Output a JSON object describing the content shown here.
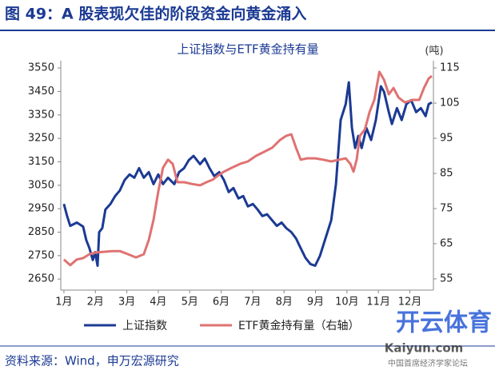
{
  "header": {
    "title": "图 49：A 股表现欠佳的阶段资金向黄金涌入"
  },
  "chart_data": {
    "type": "line",
    "title": "上证指数与ETF黄金持有量",
    "y2_unit": "(吨)",
    "xlim": [
      0.9,
      12.75
    ],
    "xticks": [
      {
        "value": 1,
        "label": "1月"
      },
      {
        "value": 2,
        "label": "2月"
      },
      {
        "value": 3,
        "label": "3月"
      },
      {
        "value": 4,
        "label": "4月"
      },
      {
        "value": 5,
        "label": "5月"
      },
      {
        "value": 6,
        "label": "6月"
      },
      {
        "value": 7,
        "label": "7月"
      },
      {
        "value": 8,
        "label": "8月"
      },
      {
        "value": 9,
        "label": "9月"
      },
      {
        "value": 10,
        "label": "10月"
      },
      {
        "value": 11,
        "label": "11月"
      },
      {
        "value": 12,
        "label": "12月"
      }
    ],
    "ylim": [
      2603,
      3581
    ],
    "yticks": [
      2650,
      2750,
      2850,
      2950,
      3050,
      3150,
      3250,
      3350,
      3450,
      3550
    ],
    "y2lim": [
      51.8,
      117.05
    ],
    "y2ticks": [
      55,
      65,
      75,
      85,
      95,
      105,
      115
    ],
    "legend": "bottom",
    "series": [
      {
        "name": "上证指数",
        "color": "#1b3a93",
        "axis": "y",
        "x": [
          1.0,
          1.1,
          1.2,
          1.41,
          1.61,
          1.71,
          1.81,
          1.92,
          1.99,
          2.07,
          2.12,
          2.22,
          2.32,
          2.48,
          2.63,
          2.78,
          2.93,
          3.09,
          3.24,
          3.39,
          3.54,
          3.7,
          3.85,
          4.0,
          4.15,
          4.31,
          4.51,
          4.66,
          4.82,
          4.97,
          5.12,
          5.33,
          5.48,
          5.63,
          5.78,
          5.94,
          6.09,
          6.24,
          6.39,
          6.55,
          6.7,
          6.85,
          7.01,
          7.16,
          7.31,
          7.46,
          7.62,
          7.77,
          7.92,
          8.07,
          8.23,
          8.38,
          8.53,
          8.68,
          8.84,
          8.99,
          9.14,
          9.3,
          9.5,
          9.65,
          9.8,
          9.96,
          10.06,
          10.16,
          10.26,
          10.36,
          10.47,
          10.62,
          10.77,
          10.92,
          11.08,
          11.18,
          11.33,
          11.43,
          11.59,
          11.74,
          11.89,
          12.04,
          12.2,
          12.35,
          12.5,
          12.6,
          12.7
        ],
        "values": [
          2970,
          2919,
          2877,
          2891,
          2874,
          2816,
          2782,
          2731,
          2765,
          2707,
          2850,
          2867,
          2946,
          2970,
          3004,
          3028,
          3072,
          3096,
          3082,
          3123,
          3082,
          3106,
          3055,
          3096,
          3055,
          3082,
          3055,
          3106,
          3123,
          3157,
          3175,
          3140,
          3164,
          3123,
          3089,
          3106,
          3072,
          3021,
          3038,
          2994,
          3004,
          2960,
          2970,
          2946,
          2919,
          2926,
          2901,
          2877,
          2891,
          2867,
          2850,
          2823,
          2782,
          2741,
          2714,
          2707,
          2748,
          2816,
          2901,
          3055,
          3328,
          3396,
          3489,
          3294,
          3209,
          3260,
          3209,
          3294,
          3243,
          3328,
          3472,
          3448,
          3362,
          3311,
          3379,
          3328,
          3396,
          3413,
          3362,
          3379,
          3345,
          3396,
          3403
        ]
      },
      {
        "name": "ETF黄金持有量（右轴）",
        "color": "#e07272",
        "axis": "y2",
        "x": [
          1.0,
          1.2,
          1.41,
          1.61,
          1.81,
          2.02,
          2.27,
          2.53,
          2.78,
          3.04,
          3.29,
          3.54,
          3.7,
          3.85,
          4.0,
          4.15,
          4.31,
          4.46,
          4.61,
          4.82,
          5.07,
          5.33,
          5.53,
          5.73,
          5.89,
          6.09,
          6.34,
          6.6,
          6.85,
          7.11,
          7.36,
          7.62,
          7.87,
          8.07,
          8.23,
          8.38,
          8.53,
          8.74,
          8.99,
          9.24,
          9.5,
          9.75,
          9.96,
          10.11,
          10.21,
          10.31,
          10.41,
          10.57,
          10.72,
          10.87,
          11.03,
          11.18,
          11.33,
          11.48,
          11.64,
          11.84,
          12.09,
          12.3,
          12.45,
          12.6,
          12.7
        ],
        "values": [
          60.5,
          58.9,
          60.5,
          60.9,
          62.0,
          62.5,
          62.7,
          62.9,
          62.9,
          62.0,
          61.1,
          62.0,
          66.1,
          71.8,
          79.8,
          86.6,
          88.9,
          87.7,
          82.5,
          82.5,
          82.0,
          81.6,
          82.5,
          83.2,
          84.3,
          85.5,
          86.6,
          87.7,
          88.4,
          90.0,
          91.1,
          92.3,
          94.5,
          95.7,
          96.1,
          92.3,
          88.9,
          89.3,
          89.3,
          88.9,
          88.4,
          88.9,
          89.3,
          87.7,
          85.5,
          88.9,
          95.7,
          97.5,
          102.5,
          105.9,
          113.9,
          111.6,
          107.5,
          109.3,
          106.6,
          105.2,
          105.9,
          105.9,
          109.3,
          112.0,
          112.7
        ]
      }
    ]
  },
  "source": "资料来源：Wind，申万宏源研究",
  "watermark": {
    "brand": "开云体育",
    "site": "Kaiyun.com",
    "corner": "中国首席经济学家论坛"
  }
}
